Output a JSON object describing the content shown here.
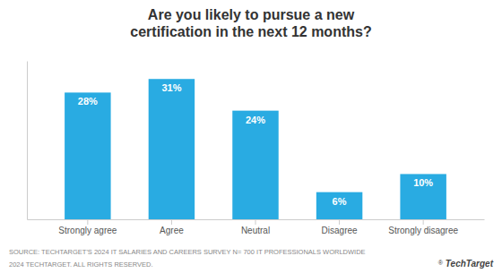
{
  "chart_data": {
    "type": "bar",
    "title": "Are you likely to pursue a new\ncertification in the next 12 months?",
    "categories": [
      "Strongly agree",
      "Agree",
      "Neutral",
      "Disagree",
      "Strongly disagree"
    ],
    "values": [
      28,
      31,
      24,
      6,
      10
    ],
    "value_labels": [
      "28%",
      "31%",
      "24%",
      "6%",
      "10%"
    ],
    "data_labels": true,
    "color": "#29ABE2",
    "ylim": [
      0,
      35
    ],
    "grid": false,
    "tick_labels": "x",
    "annotations": [
      "SOURCE: TECHTARGET'S 2024 IT SALARIES AND CAREERS SURVEY N= 700 IT PROFESSIONALS WORLDWIDE",
      "2024 TECHTARGET. ALL RIGHTS RESERVED.",
      "®",
      "TechTarget"
    ]
  }
}
